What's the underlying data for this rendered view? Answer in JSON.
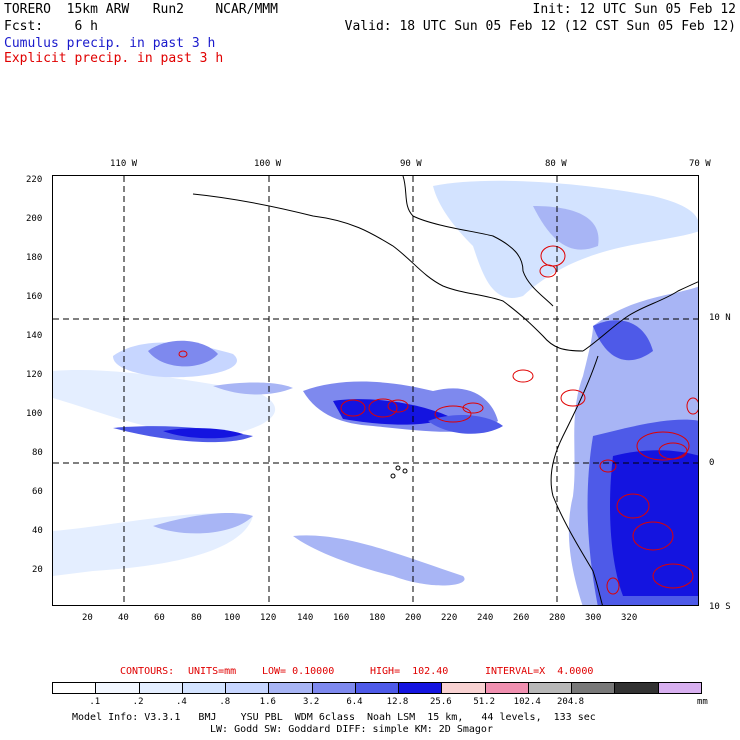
{
  "header": {
    "model": "TORERO  15km ARW   Run2    NCAR/MMM",
    "init": "Init: 12 UTC Sun 05 Feb 12",
    "fcst": "Fcst:    6 h",
    "valid": "Valid: 18 UTC Sun 05 Feb 12 (12 CST Sun 05 Feb 12)",
    "legend_cumulus": "Cumulus precip. in past 3 h",
    "legend_explicit": "Explicit precip. in past 3 h"
  },
  "colors": {
    "cumulus": "#1a1acc",
    "explicit": "#e00000",
    "grid": "#000000",
    "coast": "#000000"
  },
  "top_lon_labels": [
    "110 W",
    "100 W",
    "90 W",
    "80 W",
    "70 W"
  ],
  "right_lat_labels": [
    "10 N",
    "0",
    "10 S"
  ],
  "y_ticks": [
    "220",
    "200",
    "180",
    "160",
    "140",
    "120",
    "100",
    "80",
    "60",
    "40",
    "20"
  ],
  "x_ticks": [
    "20",
    "40",
    "60",
    "80",
    "100",
    "120",
    "140",
    "160",
    "180",
    "200",
    "220",
    "240",
    "260",
    "280",
    "300",
    "320"
  ],
  "contours_line": {
    "contours": "CONTOURS:",
    "units": "UNITS=mm",
    "low": "LOW= 0.10000",
    "high": "HIGH=  102.40",
    "interval": "INTERVAL=X  4.0000"
  },
  "colorbar": {
    "colors": [
      "#ffffff",
      "#f2f7ff",
      "#e4eeff",
      "#d3e3ff",
      "#c7d6ff",
      "#a8b5f5",
      "#7e89ee",
      "#4e5ae8",
      "#1414e0",
      "#f8d2d2",
      "#f090b0",
      "#b8b8b8",
      "#787878",
      "#323232",
      "#d8b0f0"
    ],
    "labels": [
      ".1",
      ".2",
      ".4",
      ".8",
      "1.6",
      "3.2",
      "6.4",
      "12.8",
      "25.6",
      "51.2",
      "102.4",
      "204.8"
    ],
    "unit": "mm"
  },
  "footer": {
    "line1": "Model Info: V3.3.1   BMJ    YSU PBL  WDM 6class  Noah LSM  15 km,   44 levels,  133 sec",
    "line2": "LW: Godd SW: Goddard DIFF: simple KM: 2D Smagor"
  }
}
